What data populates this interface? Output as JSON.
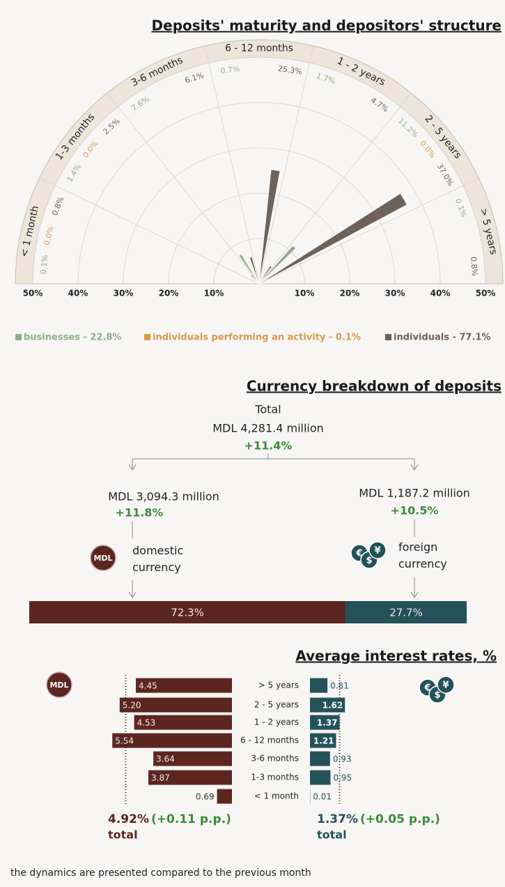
{
  "chart_data": [
    {
      "type": "polar_bar",
      "title": "Deposits' maturity and depositors' structure",
      "categories": [
        "< 1 month",
        "1-3 months",
        "3-6 months",
        "6 - 12 months",
        "1 - 2 years",
        "2 - 5 years",
        "> 5 years"
      ],
      "series": [
        {
          "name": "businesses - 22.8%",
          "color": "#8fae86",
          "values": [
            0.1,
            1.4,
            7.6,
            0.7,
            1.7,
            11.2,
            0.1
          ],
          "value_labels": [
            "0.1%",
            "1.4%",
            "7.6%",
            "0.7%",
            "1.7%",
            "11.2%",
            "0.1%"
          ]
        },
        {
          "name": "individuals performing an activity - 0.1%",
          "color": "#d99a4e",
          "values": [
            0.0,
            0.0,
            null,
            null,
            null,
            0.0,
            null
          ],
          "value_labels": [
            "0.0%",
            "0.0%",
            null,
            null,
            null,
            "0.0%",
            null
          ]
        },
        {
          "name": "individuals - 77.1%",
          "color": "#6e6259",
          "values": [
            0.8,
            2.5,
            6.1,
            25.3,
            4.7,
            37.0,
            0.8
          ],
          "value_labels": [
            "0.8%",
            "2.5%",
            "6.1%",
            "25.3%",
            "4.7%",
            "37.0%",
            "0.8%"
          ]
        }
      ],
      "rlim": [
        0,
        50
      ],
      "rticks": [
        {
          "value": 10,
          "label": "10%"
        },
        {
          "value": 20,
          "label": "20%"
        },
        {
          "value": 30,
          "label": "30%"
        },
        {
          "value": 40,
          "label": "40%"
        },
        {
          "value": 50,
          "label": "50%"
        }
      ],
      "grid": true
    },
    {
      "type": "share_bar",
      "title": "Currency breakdown of deposits",
      "total_label": "Total",
      "total": "MDL 4,281.4 million",
      "total_change": "+11.4%",
      "amounts": [
        "MDL 3,094.3 million",
        "MDL 1,187.2 million"
      ],
      "changes": [
        "+11.8%",
        "+10.5%"
      ],
      "icon_label": "MDL",
      "icon_symbols": [
        "€",
        "$",
        "¥"
      ],
      "series": [
        {
          "name": "domestic currency",
          "color": "#5c2620",
          "values": [
            72.3
          ],
          "value_labels": [
            "72.3%"
          ]
        },
        {
          "name": "foreign currency",
          "color": "#23525a",
          "values": [
            27.7
          ],
          "value_labels": [
            "27.7%"
          ]
        }
      ],
      "xlim": [
        0,
        100
      ]
    },
    {
      "type": "butterfly_bar",
      "title": "Average interest rates, %",
      "categories": [
        "> 5 years",
        "2 - 5 years",
        "1 - 2 years",
        "6 - 12 months",
        "3-6 months",
        "1-3 months",
        "< 1 month"
      ],
      "icon_label": "MDL",
      "icon_symbols": [
        "€",
        "$",
        "¥"
      ],
      "total_word": "total",
      "series": [
        {
          "name": "MDL",
          "color": "#5c2620",
          "values": [
            4.45,
            5.2,
            4.53,
            5.54,
            3.64,
            3.87,
            0.69
          ],
          "value_labels": [
            "4.45",
            "5.20",
            "4.53",
            "5.54",
            "3.64",
            "3.87",
            "0.69"
          ],
          "total": 4.92,
          "total_label": "4.92%",
          "total_change": "(+0.11 p.p.)"
        },
        {
          "color": "#23525a",
          "values": [
            0.81,
            1.62,
            1.37,
            1.21,
            0.93,
            0.95,
            0.01
          ],
          "total": 1.37,
          "total_label": "1.37%",
          "total_change": "(+0.05 p.p.)"
        }
      ]
    }
  ],
  "footnote": "the dynamics are presented compared to the previous month"
}
